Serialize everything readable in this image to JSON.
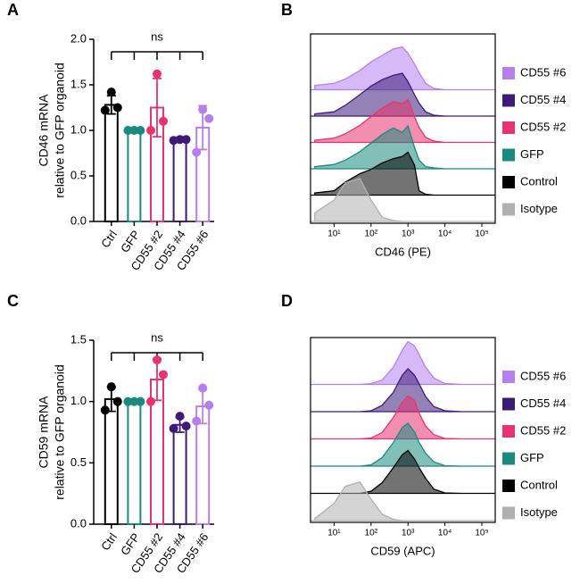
{
  "chart_data": [
    {
      "type": "bar",
      "panel_label": "A",
      "ylabel": [
        "CD46 mRNA",
        "relative to GFP organoid"
      ],
      "annotation": "ns",
      "categories": [
        "Ctrl",
        "GFP",
        "CD55 #2",
        "CD55 #4",
        "CD55 #6"
      ],
      "colors": [
        "#000000",
        "#1a8a80",
        "#e8336f",
        "#3d1a78",
        "#b57ff0"
      ],
      "values": [
        1.28,
        1.0,
        1.25,
        0.9,
        1.03
      ],
      "errors": [
        0.1,
        0.0,
        0.32,
        0.01,
        0.24
      ],
      "points": [
        [
          1.42,
          1.25,
          1.22
        ],
        [
          1.0,
          1.0,
          1.0
        ],
        [
          1.62,
          1.1,
          1.0
        ],
        [
          0.9,
          0.9,
          0.89
        ],
        [
          1.23,
          1.13,
          0.76
        ]
      ],
      "ylim": [
        0,
        2
      ],
      "yticks": [
        {
          "value": 0,
          "label": "0.0"
        },
        {
          "value": 0.5,
          "label": "0.5"
        },
        {
          "value": 1,
          "label": "1.0"
        },
        {
          "value": 1.5,
          "label": "1.5"
        },
        {
          "value": 2,
          "label": "2.0"
        }
      ]
    },
    {
      "type": "density",
      "panel_label": "B",
      "xlabel": "CD46 (PE)",
      "log_x": true,
      "x": [
        3,
        10,
        20,
        50,
        100,
        200,
        400,
        700,
        1000,
        1500,
        2000,
        3000,
        5000,
        10000,
        30000
      ],
      "xlim": [
        2.3,
        230000
      ],
      "xticks": [
        {
          "value": 10,
          "label": "10¹"
        },
        {
          "value": 100,
          "label": "10²"
        },
        {
          "value": 1000,
          "label": "10³"
        },
        {
          "value": 10000,
          "label": "10⁴"
        },
        {
          "value": 100000,
          "label": "10⁵"
        }
      ],
      "series": [
        {
          "name": "CD55 #6",
          "color": "#b57ff0",
          "values": [
            0.1,
            0.15,
            0.25,
            0.45,
            0.65,
            0.8,
            0.95,
            1.0,
            0.85,
            0.6,
            0.4,
            0.15,
            0.03,
            0,
            0
          ]
        },
        {
          "name": "CD55 #4",
          "color": "#3d1a78",
          "values": [
            0.05,
            0.1,
            0.25,
            0.5,
            0.7,
            0.85,
            0.95,
            1.0,
            0.8,
            0.5,
            0.3,
            0.1,
            0.02,
            0,
            0
          ]
        },
        {
          "name": "CD55 #2",
          "color": "#e8336f",
          "values": [
            0.05,
            0.1,
            0.2,
            0.4,
            0.6,
            0.8,
            0.95,
            0.9,
            1.0,
            0.6,
            0.35,
            0.12,
            0.03,
            0,
            0
          ]
        },
        {
          "name": "GFP",
          "color": "#1a8a80",
          "values": [
            0.05,
            0.1,
            0.2,
            0.4,
            0.6,
            0.8,
            0.95,
            0.85,
            1.0,
            0.5,
            0.2,
            0.05,
            0.02,
            0,
            0
          ]
        },
        {
          "name": "Control",
          "color": "#000000",
          "values": [
            0.05,
            0.1,
            0.3,
            0.5,
            0.6,
            0.75,
            0.85,
            0.9,
            1.0,
            0.7,
            0.1,
            0.02,
            0,
            0,
            0
          ]
        },
        {
          "name": "Isotype",
          "color": "#b0b0b0",
          "values": [
            0.2,
            0.5,
            0.9,
            1.0,
            0.5,
            0.1,
            0.02,
            0,
            0,
            0,
            0,
            0,
            0,
            0,
            0
          ]
        }
      ]
    },
    {
      "type": "bar",
      "panel_label": "C",
      "ylabel": [
        "CD59 mRNA",
        "relative to GFP organoid"
      ],
      "annotation": "ns",
      "categories": [
        "Ctrl",
        "GFP",
        "CD55 #2",
        "CD55 #4",
        "CD55 #6"
      ],
      "colors": [
        "#000000",
        "#1a8a80",
        "#e8336f",
        "#3d1a78",
        "#b57ff0"
      ],
      "values": [
        1.02,
        1.0,
        1.18,
        0.81,
        0.96
      ],
      "errors": [
        0.1,
        0.0,
        0.17,
        0.06,
        0.14
      ],
      "points": [
        [
          1.12,
          1.0,
          0.93
        ],
        [
          1.0,
          1.0,
          1.0
        ],
        [
          1.34,
          1.22,
          1.0
        ],
        [
          0.88,
          0.8,
          0.78
        ],
        [
          1.11,
          0.97,
          0.84
        ]
      ],
      "ylim": [
        0,
        1.5
      ],
      "yticks": [
        {
          "value": 0,
          "label": "0.0"
        },
        {
          "value": 0.5,
          "label": "0.5"
        },
        {
          "value": 1,
          "label": "1.0"
        },
        {
          "value": 1.5,
          "label": "1.5"
        }
      ]
    },
    {
      "type": "density",
      "panel_label": "D",
      "xlabel": "CD59 (APC)",
      "log_x": true,
      "x": [
        3,
        10,
        20,
        50,
        100,
        200,
        400,
        700,
        1000,
        1500,
        2000,
        3000,
        5000,
        10000,
        30000
      ],
      "xlim": [
        2.3,
        230000
      ],
      "xticks": [
        {
          "value": 10,
          "label": "10¹"
        },
        {
          "value": 100,
          "label": "10²"
        },
        {
          "value": 1000,
          "label": "10³"
        },
        {
          "value": 10000,
          "label": "10⁴"
        },
        {
          "value": 100000,
          "label": "10⁵"
        }
      ],
      "series": [
        {
          "name": "CD55 #6",
          "color": "#b57ff0",
          "values": [
            0,
            0,
            0,
            0,
            0.02,
            0.1,
            0.4,
            0.8,
            1.0,
            0.9,
            0.7,
            0.4,
            0.15,
            0.02,
            0
          ]
        },
        {
          "name": "CD55 #4",
          "color": "#3d1a78",
          "values": [
            0,
            0,
            0,
            0,
            0.02,
            0.15,
            0.45,
            0.85,
            1.0,
            0.85,
            0.65,
            0.35,
            0.12,
            0.02,
            0
          ]
        },
        {
          "name": "CD55 #2",
          "color": "#e8336f",
          "values": [
            0,
            0,
            0,
            0,
            0.02,
            0.15,
            0.5,
            0.85,
            1.0,
            0.9,
            0.6,
            0.3,
            0.1,
            0.01,
            0
          ]
        },
        {
          "name": "GFP",
          "color": "#1a8a80",
          "values": [
            0,
            0,
            0,
            0,
            0.03,
            0.2,
            0.55,
            0.9,
            1.0,
            0.8,
            0.55,
            0.3,
            0.1,
            0.01,
            0
          ]
        },
        {
          "name": "Control",
          "color": "#000000",
          "values": [
            0,
            0,
            0,
            0,
            0.05,
            0.25,
            0.6,
            0.9,
            1.0,
            0.8,
            0.6,
            0.35,
            0.1,
            0.01,
            0
          ]
        },
        {
          "name": "Isotype",
          "color": "#b0b0b0",
          "values": [
            0.05,
            0.4,
            0.8,
            0.9,
            0.5,
            0.15,
            0.03,
            0,
            0,
            0,
            0,
            0,
            0,
            0,
            0
          ]
        }
      ]
    }
  ]
}
